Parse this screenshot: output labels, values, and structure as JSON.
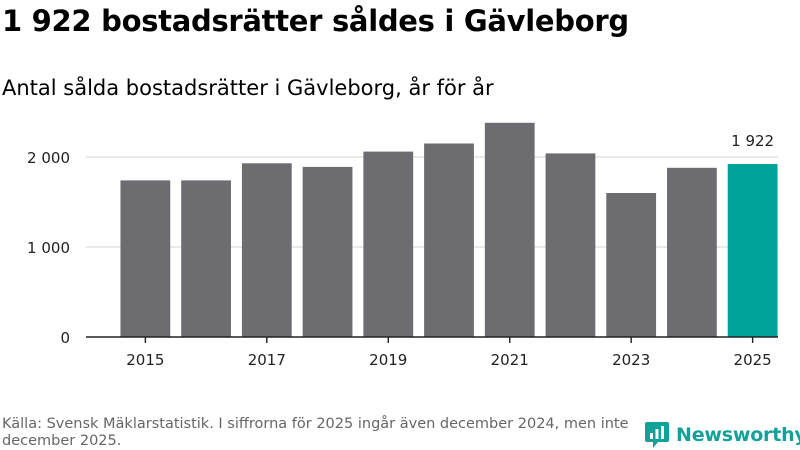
{
  "header": {
    "title": "1 922 bostadsrätter såldes i Gävleborg",
    "subtitle": "Antal sålda bostadsrätter i Gävleborg, år för år"
  },
  "footer": {
    "source": "Källa: Svensk Mäklarstatistik. I siffrorna för 2025 ingår även december 2024, men inte december 2025.",
    "brand": "Newsworthy"
  },
  "colors": {
    "bar": "#6d6c70",
    "highlight": "#00a39a",
    "grid": "#dddddd",
    "axis": "#222222",
    "brand": "#12a29a"
  },
  "chart_data": {
    "type": "bar",
    "title": "Antal sålda bostadsrätter i Gävleborg, år för år",
    "xlabel": "",
    "ylabel": "",
    "categories": [
      "2015",
      "2016",
      "2017",
      "2018",
      "2019",
      "2020",
      "2021",
      "2022",
      "2023",
      "2024",
      "2025"
    ],
    "values": [
      1740,
      1740,
      1930,
      1890,
      2060,
      2150,
      2380,
      2040,
      1600,
      1880,
      1922
    ],
    "x_tick_labels": [
      "2015",
      "2017",
      "2019",
      "2021",
      "2023",
      "2025"
    ],
    "y_ticks": [
      0,
      1000,
      2000
    ],
    "y_tick_labels": [
      "0",
      "1 000",
      "2 000"
    ],
    "ylim": [
      0,
      2500
    ],
    "highlight_index": 10,
    "data_labels": [
      {
        "index": 10,
        "text": "1 922"
      }
    ],
    "grid": true,
    "legend": "none"
  }
}
